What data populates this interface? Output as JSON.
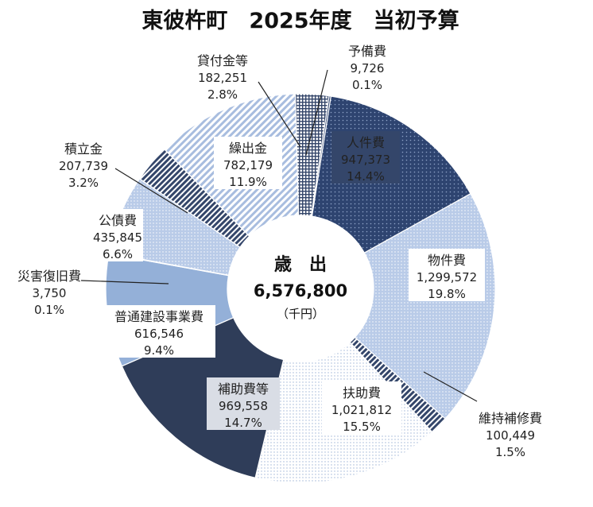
{
  "chart_data": {
    "type": "pie",
    "title": "東彼杵町　2025年度　当初予算",
    "center": {
      "heading": "歳　出",
      "total": "6,576,800",
      "unit": "（千円）"
    },
    "slices": [
      {
        "name": "人件費",
        "value": 947373,
        "value_label": "947,373",
        "percent_label": "14.4%",
        "color": "#2e4470",
        "pattern": "dots-dark"
      },
      {
        "name": "物件費",
        "value": 1299572,
        "value_label": "1,299,572",
        "percent_label": "19.8%",
        "color": "#b4c7e7",
        "pattern": "dots-light"
      },
      {
        "name": "維持補修費",
        "value": 100449,
        "value_label": "100,449",
        "percent_label": "1.5%",
        "color": "#34466a",
        "pattern": "diag-dark"
      },
      {
        "name": "扶助費",
        "value": 1021812,
        "value_label": "1,021,812",
        "percent_label": "15.5%",
        "color": "#e8eef7",
        "pattern": "dots-fine"
      },
      {
        "name": "補助費等",
        "value": 969558,
        "value_label": "969,558",
        "percent_label": "14.7%",
        "color": "#2f3d59",
        "pattern": "solid"
      },
      {
        "name": "普通建設事業費",
        "value": 616546,
        "value_label": "616,546",
        "percent_label": "9.4%",
        "color": "#94b0d8",
        "pattern": "solid"
      },
      {
        "name": "災害復旧費",
        "value": 3750,
        "value_label": "3,750",
        "percent_label": "0.1%",
        "color": "#7f9cc7",
        "pattern": "solid"
      },
      {
        "name": "公債費",
        "value": 435845,
        "value_label": "435,845",
        "percent_label": "6.6%",
        "color": "#c9d6ec",
        "pattern": "dots-light"
      },
      {
        "name": "積立金",
        "value": 207739,
        "value_label": "207,739",
        "percent_label": "3.2%",
        "color": "#3d4f72",
        "pattern": "diag-dark"
      },
      {
        "name": "繰出金",
        "value": 782179,
        "value_label": "782,179",
        "percent_label": "11.9%",
        "color": "#dbe5f3",
        "pattern": "diag-light"
      },
      {
        "name": "貸付金等",
        "value": 182251,
        "value_label": "182,251",
        "percent_label": "2.8%",
        "color": "#e3eaf5",
        "pattern": "grid"
      },
      {
        "name": "予備費",
        "value": 9726,
        "value_label": "9,726",
        "percent_label": "0.1%",
        "color": "#2e4470",
        "pattern": "solid"
      }
    ]
  }
}
